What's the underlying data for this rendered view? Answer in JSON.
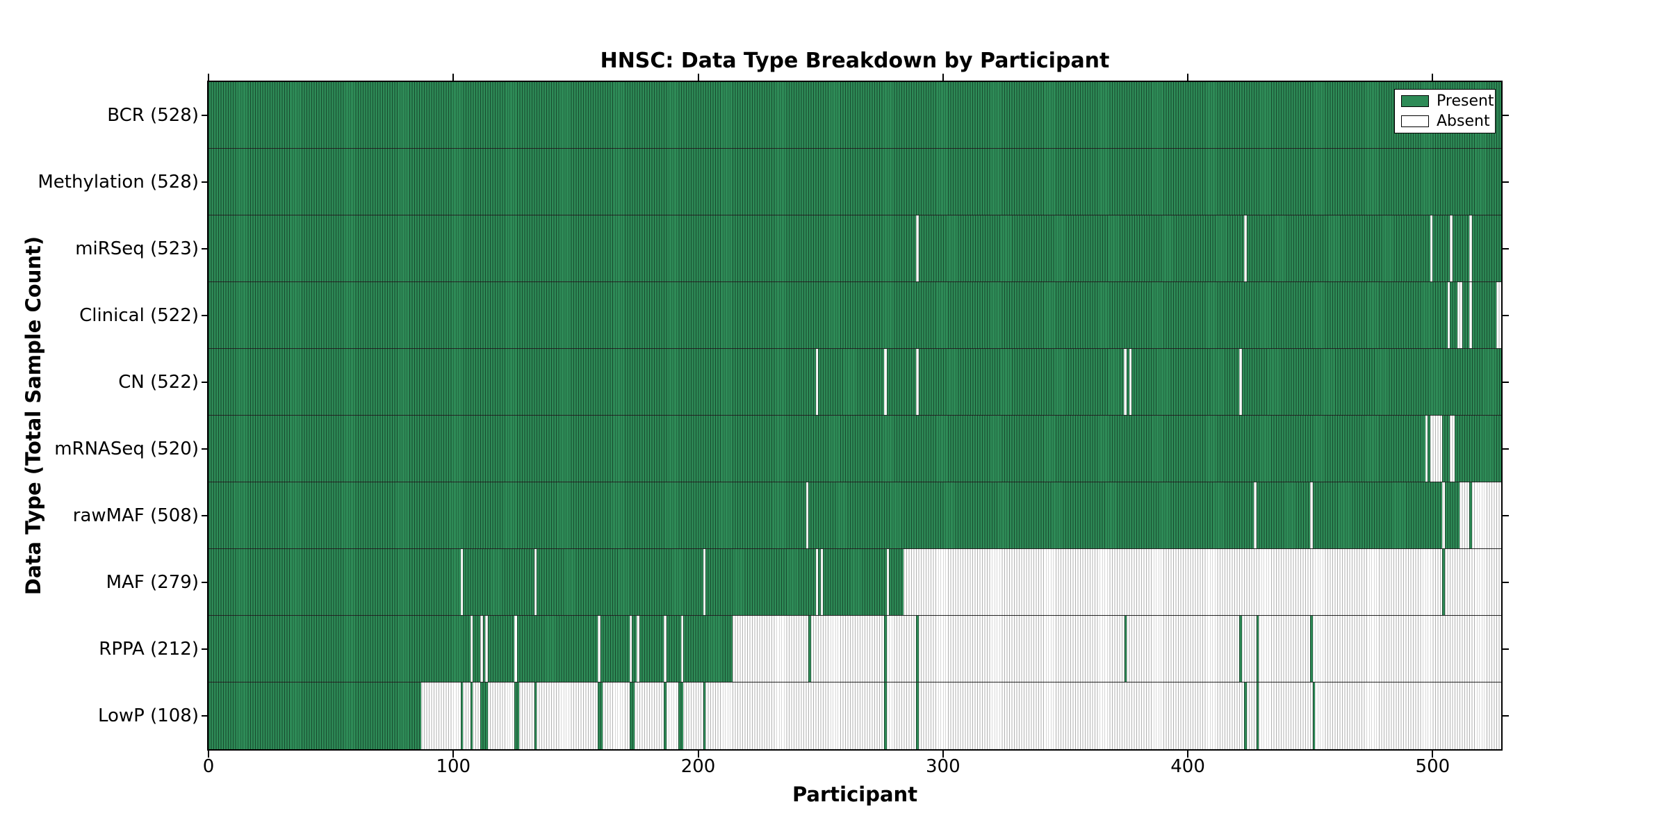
{
  "chart_data": {
    "type": "heatmap",
    "title": "HNSC: Data Type Breakdown by Participant",
    "xlabel": "Participant",
    "ylabel": "Data Type (Total Sample Count)",
    "x_ticks": [
      0,
      100,
      200,
      300,
      400,
      500
    ],
    "x_range": [
      0,
      528
    ],
    "n_participants": 528,
    "grid": false,
    "legend_position": "upper right",
    "legend": [
      {
        "label": "Present",
        "color": "#2e8b57"
      },
      {
        "label": "Absent",
        "color": "#ffffff"
      }
    ],
    "colors": {
      "present_fill": "#2e8b57",
      "present_line": "#17492d",
      "absent_fill": "#ffffff",
      "absent_line": "#b0b0b0",
      "row_divider": "#111111",
      "border": "#000000"
    },
    "rows": [
      {
        "label": "BCR",
        "count": 528,
        "present_ranges": [
          [
            0,
            528
          ]
        ]
      },
      {
        "label": "Methylation",
        "count": 528,
        "present_ranges": [
          [
            0,
            528
          ]
        ]
      },
      {
        "label": "miRSeq",
        "count": 523,
        "present_ranges": [
          [
            0,
            289
          ],
          [
            290,
            423
          ],
          [
            424,
            499
          ],
          [
            500,
            507
          ],
          [
            508,
            515
          ],
          [
            516,
            528
          ]
        ]
      },
      {
        "label": "Clinical",
        "count": 522,
        "present_ranges": [
          [
            0,
            506
          ],
          [
            507,
            510
          ],
          [
            512,
            515
          ],
          [
            516,
            526
          ]
        ]
      },
      {
        "label": "CN",
        "count": 522,
        "present_ranges": [
          [
            0,
            248
          ],
          [
            249,
            276
          ],
          [
            277,
            289
          ],
          [
            290,
            374
          ],
          [
            375,
            376
          ],
          [
            377,
            421
          ],
          [
            422,
            528
          ]
        ]
      },
      {
        "label": "mRNASeq",
        "count": 520,
        "present_ranges": [
          [
            0,
            497
          ],
          [
            498,
            499
          ],
          [
            504,
            507
          ],
          [
            509,
            528
          ]
        ]
      },
      {
        "label": "rawMAF",
        "count": 508,
        "present_ranges": [
          [
            0,
            244
          ],
          [
            245,
            427
          ],
          [
            428,
            450
          ],
          [
            451,
            504
          ],
          [
            505,
            511
          ],
          [
            515,
            516
          ]
        ]
      },
      {
        "label": "MAF",
        "count": 279,
        "present_ranges": [
          [
            0,
            103
          ],
          [
            104,
            133
          ],
          [
            134,
            202
          ],
          [
            203,
            248
          ],
          [
            249,
            250
          ],
          [
            251,
            277
          ],
          [
            278,
            284
          ],
          [
            504,
            505
          ]
        ]
      },
      {
        "label": "RPPA",
        "count": 212,
        "present_ranges": [
          [
            0,
            107
          ],
          [
            108,
            111
          ],
          [
            112,
            113
          ],
          [
            114,
            125
          ],
          [
            126,
            159
          ],
          [
            160,
            172
          ],
          [
            173,
            175
          ],
          [
            176,
            186
          ],
          [
            187,
            193
          ],
          [
            194,
            214
          ],
          [
            245,
            246
          ],
          [
            276,
            277
          ],
          [
            289,
            290
          ],
          [
            374,
            375
          ],
          [
            421,
            422
          ],
          [
            428,
            429
          ],
          [
            450,
            451
          ]
        ]
      },
      {
        "label": "LowP",
        "count": 108,
        "present_ranges": [
          [
            0,
            87
          ],
          [
            103,
            104
          ],
          [
            107,
            108
          ],
          [
            111,
            114
          ],
          [
            125,
            127
          ],
          [
            133,
            134
          ],
          [
            159,
            161
          ],
          [
            172,
            174
          ],
          [
            186,
            187
          ],
          [
            192,
            194
          ],
          [
            202,
            203
          ],
          [
            276,
            277
          ],
          [
            289,
            290
          ],
          [
            423,
            424
          ],
          [
            428,
            429
          ],
          [
            451,
            452
          ]
        ]
      }
    ]
  }
}
